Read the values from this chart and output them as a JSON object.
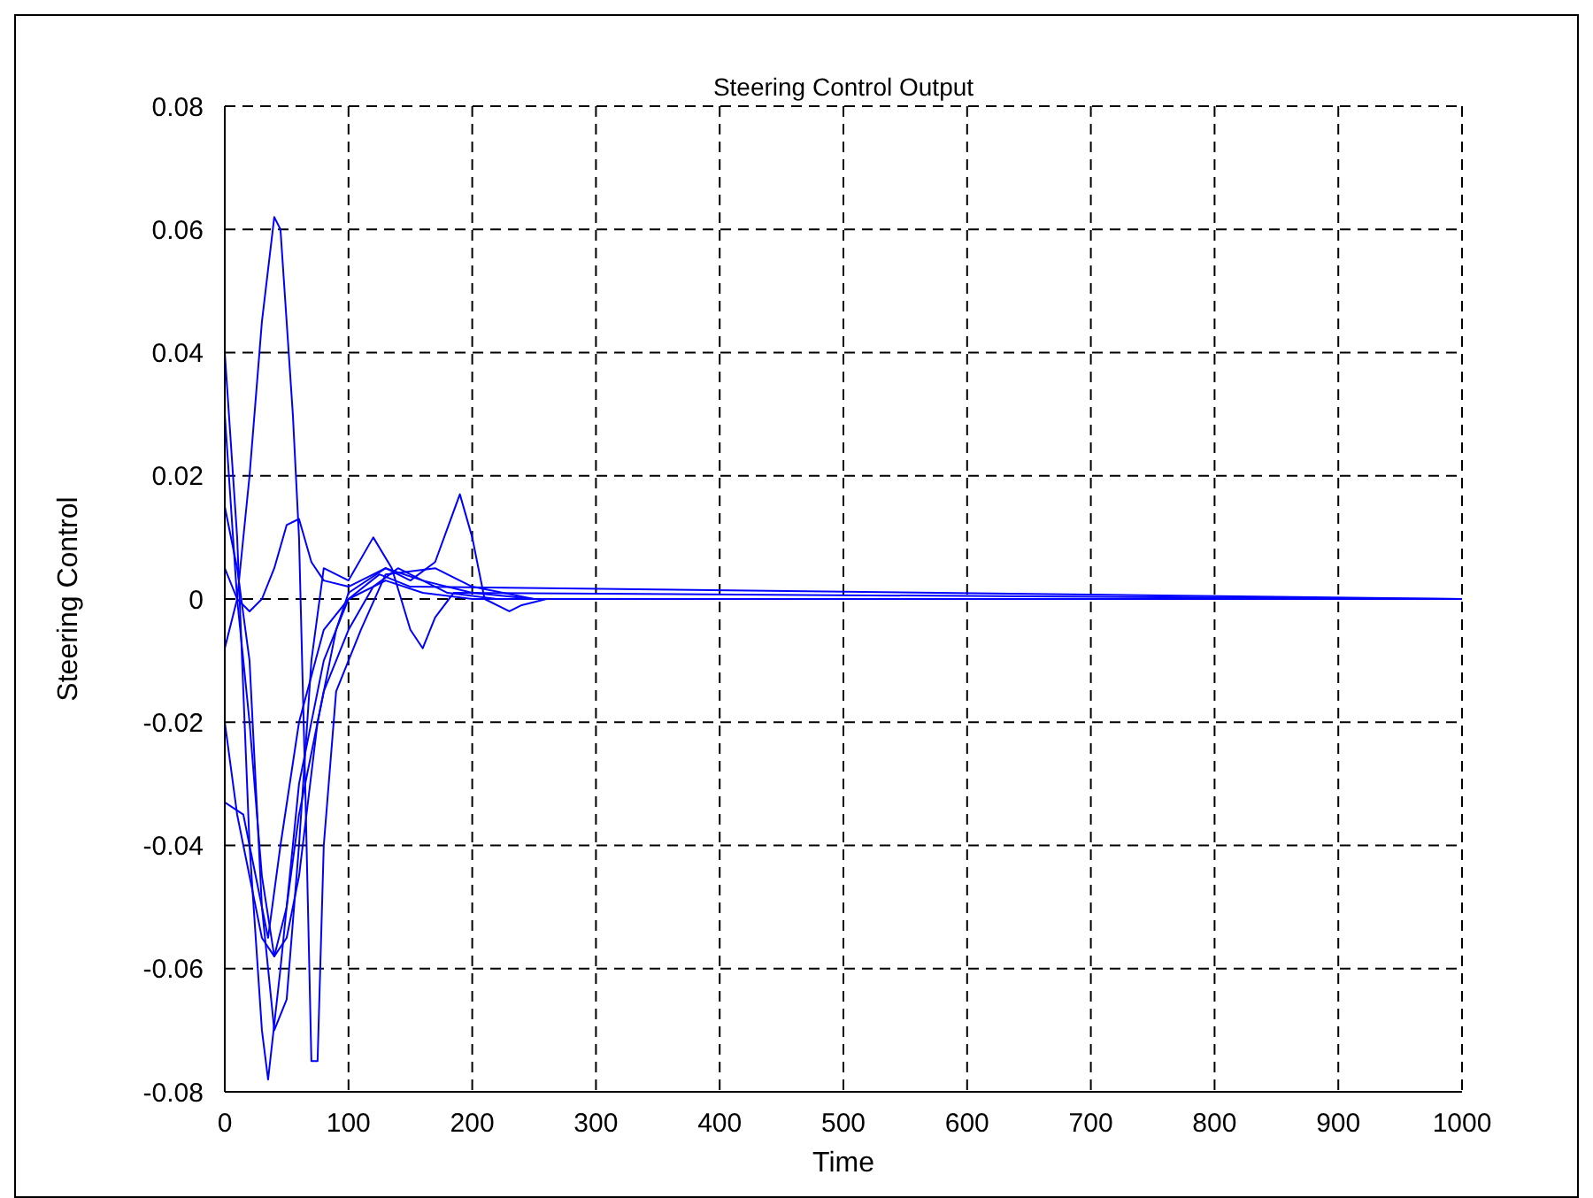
{
  "chart_data": {
    "type": "line",
    "title": "Steering Control Output",
    "xlabel": "Time",
    "ylabel": "Steering Control",
    "xlim": [
      0,
      1000
    ],
    "ylim": [
      -0.08,
      0.08
    ],
    "xticks": [
      0,
      100,
      200,
      300,
      400,
      500,
      600,
      700,
      800,
      900,
      1000
    ],
    "yticks": [
      -0.08,
      -0.06,
      -0.04,
      -0.02,
      0,
      0.02,
      0.04,
      0.06,
      0.08
    ],
    "grid": true,
    "line_style": "solid",
    "series": [
      {
        "color": "#0000ff",
        "x": [
          0,
          10,
          20,
          30,
          35,
          45,
          60,
          80,
          100,
          130,
          160,
          200,
          300,
          1000
        ],
        "values": [
          0.04,
          0.01,
          -0.04,
          -0.07,
          -0.078,
          -0.06,
          -0.03,
          -0.01,
          0,
          0.003,
          0.001,
          0,
          0,
          0
        ]
      },
      {
        "color": "#0000ff",
        "x": [
          0,
          10,
          20,
          30,
          40,
          45,
          55,
          60,
          65,
          70,
          75,
          80,
          90,
          110,
          130,
          170,
          200,
          250,
          1000
        ],
        "values": [
          -0.008,
          0,
          0.02,
          0.045,
          0.062,
          0.06,
          0.03,
          0.01,
          -0.03,
          -0.075,
          -0.075,
          -0.04,
          -0.015,
          -0.005,
          0.004,
          0.005,
          0.002,
          0,
          0
        ]
      },
      {
        "color": "#0000ff",
        "x": [
          0,
          10,
          20,
          30,
          40,
          50,
          60,
          70,
          80,
          100,
          120,
          135,
          150,
          160,
          170,
          185,
          1000
        ],
        "values": [
          0.015,
          0.005,
          -0.01,
          -0.05,
          -0.07,
          -0.065,
          -0.04,
          -0.01,
          0.005,
          0.003,
          0.01,
          0.005,
          -0.005,
          -0.008,
          -0.003,
          0.001,
          0
        ]
      },
      {
        "color": "#0000ff",
        "x": [
          0,
          10,
          20,
          30,
          40,
          50,
          60,
          75,
          90,
          100,
          130,
          150,
          170,
          190,
          200,
          210,
          230,
          240,
          260,
          1000
        ],
        "values": [
          0.03,
          0,
          -0.02,
          -0.045,
          -0.058,
          -0.055,
          -0.045,
          -0.02,
          -0.005,
          0.001,
          0.005,
          0.003,
          0.006,
          0.017,
          0.01,
          0,
          -0.002,
          -0.001,
          0,
          0
        ]
      },
      {
        "color": "#0000ff",
        "x": [
          0,
          10,
          20,
          30,
          40,
          50,
          60,
          80,
          100,
          120,
          140,
          180,
          220,
          1000
        ],
        "values": [
          -0.02,
          -0.035,
          -0.045,
          -0.055,
          -0.058,
          -0.05,
          -0.035,
          -0.015,
          -0.005,
          0.002,
          0.005,
          0.001,
          0,
          0
        ]
      },
      {
        "color": "#0000ff",
        "x": [
          0,
          10,
          20,
          30,
          40,
          50,
          60,
          70,
          80,
          100,
          130,
          160,
          200,
          250,
          1000
        ],
        "values": [
          0.005,
          0,
          -0.002,
          0,
          0.005,
          0.012,
          0.013,
          0.006,
          0.003,
          0.002,
          0.005,
          0.003,
          0.001,
          0,
          0
        ]
      },
      {
        "color": "#0000ff",
        "x": [
          0,
          15,
          25,
          35,
          45,
          60,
          80,
          100,
          125,
          150,
          1000
        ],
        "values": [
          -0.033,
          -0.035,
          -0.045,
          -0.055,
          -0.04,
          -0.02,
          -0.005,
          0,
          0.004,
          0.002,
          0
        ]
      }
    ]
  }
}
